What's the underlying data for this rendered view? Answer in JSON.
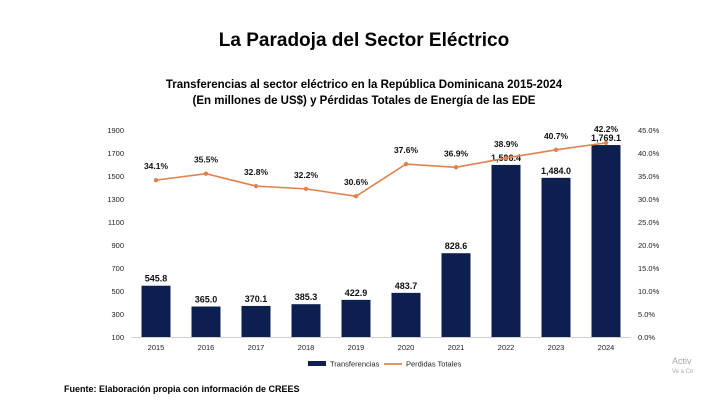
{
  "page": {
    "main_title": "La Paradoja del Sector Eléctrico",
    "source": "Fuente: Elaboración propia con información de CREES",
    "watermark_line1": "Activ",
    "watermark_line2": "Ve a Co"
  },
  "chart_data": {
    "type": "bar",
    "title_line1": "Transferencias al sector eléctrico en la República Dominicana 2015-2024",
    "title_line2": "(En millones de US$) y Pérdidas Totales de Energía de las EDE",
    "categories": [
      "2015",
      "2016",
      "2017",
      "2018",
      "2019",
      "2020",
      "2021",
      "2022",
      "2023",
      "2024"
    ],
    "series": [
      {
        "name": "Transferencias",
        "type": "bar",
        "axis": "left",
        "color": "#0d1f4f",
        "values": [
          545.8,
          365.0,
          370.1,
          385.3,
          422.9,
          483.7,
          828.6,
          1596.4,
          1484.0,
          1769.1
        ],
        "labels": [
          "545.8",
          "365.0",
          "370.1",
          "385.3",
          "422.9",
          "483.7",
          "828.6",
          "1,596.4",
          "1,484.0",
          "1,769.1"
        ]
      },
      {
        "name": "Perdidas Totales",
        "type": "line",
        "axis": "right",
        "color": "#e0824f",
        "values": [
          34.1,
          35.5,
          32.8,
          32.2,
          30.6,
          37.6,
          36.9,
          38.9,
          40.7,
          42.2
        ],
        "labels": [
          "34.1%",
          "35.5%",
          "32.8%",
          "32.2%",
          "30.6%",
          "37.6%",
          "36.9%",
          "38.9%",
          "40.7%",
          "42.2%"
        ]
      }
    ],
    "left_axis": {
      "ylim": [
        100,
        1900
      ],
      "ticks": [
        100,
        300,
        500,
        700,
        900,
        1100,
        1300,
        1500,
        1700,
        1900
      ],
      "tick_labels": [
        "100",
        "300",
        "500",
        "700",
        "900",
        "1100",
        "1300",
        "1500",
        "1700",
        "1900"
      ]
    },
    "right_axis": {
      "ylim": [
        0,
        45
      ],
      "ticks": [
        0,
        5,
        10,
        15,
        20,
        25,
        30,
        35,
        40,
        45
      ],
      "tick_labels": [
        "0.0%",
        "5.0%",
        "10.0%",
        "15.0%",
        "20.0%",
        "25.0%",
        "30.0%",
        "35.0%",
        "40.0%",
        "45.0%"
      ]
    },
    "grid": false,
    "legend": [
      "Transferencias",
      "Perdidas Totales"
    ],
    "legend_position": "bottom"
  }
}
